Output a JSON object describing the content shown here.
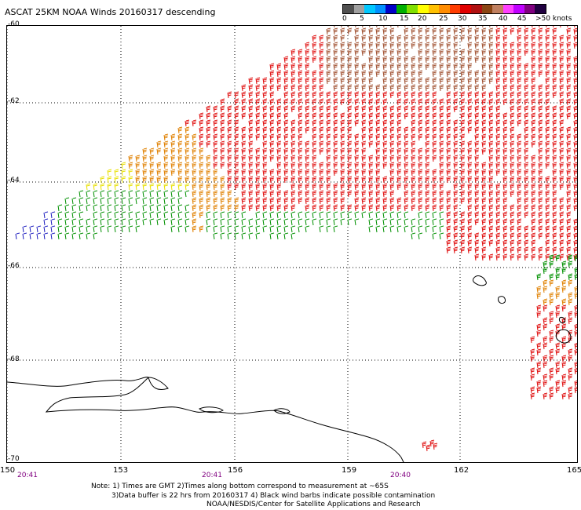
{
  "title": "ASCAT 25KM NOAA Winds 20160317 descending",
  "legend": {
    "colors": [
      "#505050",
      "#a0a0a0",
      "#00c8ff",
      "#0090ff",
      "#0000c8",
      "#00b000",
      "#80e000",
      "#ffff00",
      "#ffc000",
      "#ff8c00",
      "#ff3c00",
      "#e00000",
      "#b01010",
      "#8b4513",
      "#c08060",
      "#ff40ff",
      "#c000ff",
      "#800080",
      "#200040"
    ],
    "ticks": [
      "0",
      "5",
      "10",
      "15",
      "20",
      "25",
      "30",
      "35",
      "40",
      "45",
      ">50 knots"
    ]
  },
  "axes": {
    "lat_labels": [
      "-60",
      "-62",
      "-64",
      "-66",
      "-68",
      "-70"
    ],
    "lon_labels": [
      "150",
      "153",
      "156",
      "159",
      "162",
      "165"
    ]
  },
  "times": [
    "20:41",
    "20:41",
    "20:40"
  ],
  "notes": {
    "line1": "Note: 1) Times are GMT 2)Times along bottom correspond to measurement at ~65S",
    "line2": "3)Data buffer is 22 hrs from 20160317 4) Black wind barbs indicate possible contamination",
    "line3": "NOAA/NESDIS/Center for Satellite Applications and Research"
  },
  "wind_colors": {
    "green": "#009000",
    "yellow": "#e8e000",
    "orange": "#e08000",
    "red": "#e01010",
    "brown": "#a05030",
    "blue": "#2020c0"
  }
}
